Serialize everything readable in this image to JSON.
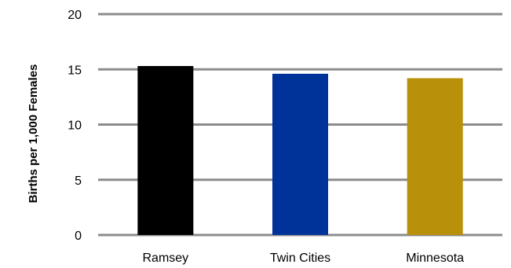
{
  "chart_data": {
    "type": "bar",
    "categories": [
      "Ramsey",
      "Twin Cities",
      "Minnesota"
    ],
    "values": [
      15.3,
      14.6,
      14.2
    ],
    "colors": [
      "#000000",
      "#003399",
      "#b8900a"
    ],
    "title": "",
    "xlabel": "",
    "ylabel": "Births per 1,000 Females",
    "ylim": [
      0,
      20
    ],
    "yticks": [
      "0",
      "5",
      "10",
      "15",
      "20"
    ],
    "grid": true,
    "legend": "none"
  }
}
